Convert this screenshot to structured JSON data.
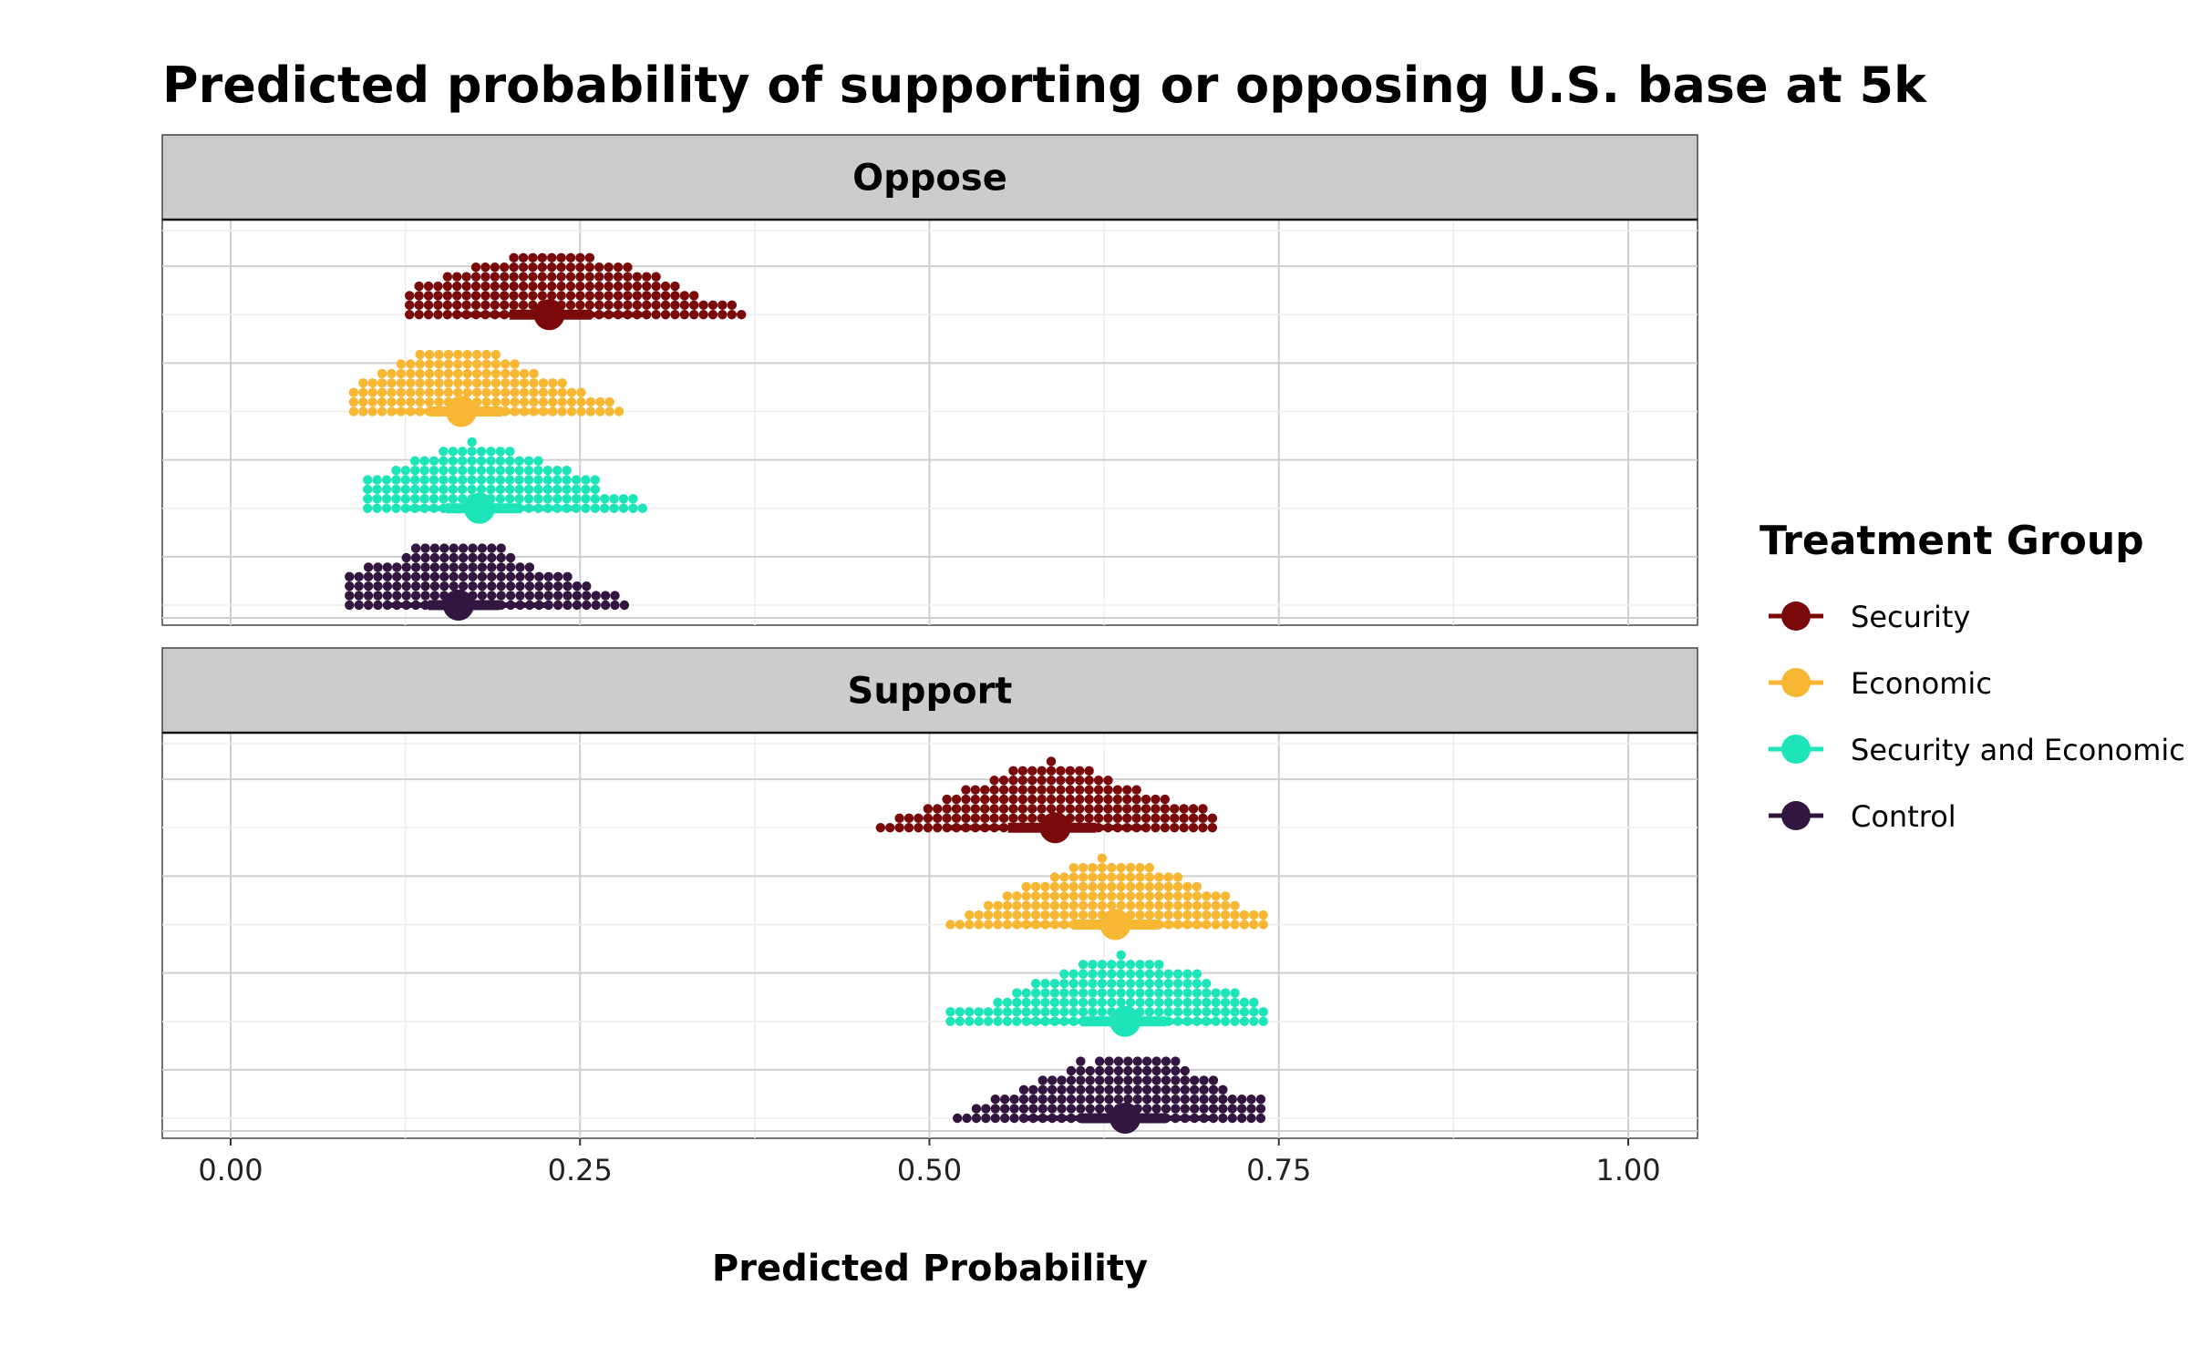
{
  "chart_data": {
    "type": "scatter",
    "subtype": "dot-interval (quantile dotplot with median and interval)",
    "title": "Predicted probability of supporting or opposing U.S. base at 5k",
    "xlabel": "Predicted Probability",
    "ylabel": "",
    "xlim": [
      -0.05,
      1.05
    ],
    "x_ticks": [
      0.0,
      0.25,
      0.5,
      0.75,
      1.0
    ],
    "x_tick_labels": [
      "0.00",
      "0.25",
      "0.50",
      "0.75",
      "1.00"
    ],
    "grid": true,
    "legend": {
      "title": "Treatment Group",
      "position": "right",
      "entries": [
        "Security",
        "Economic",
        "Security and Economic",
        "Control"
      ]
    },
    "colors": {
      "Security": "#7a0a0a",
      "Economic": "#f7b733",
      "Security and Economic": "#1de5b9",
      "Control": "#33163f"
    },
    "facets": [
      {
        "label": "Oppose",
        "series": [
          {
            "name": "Security",
            "median": 0.228,
            "interval": [
              0.165,
              0.295
            ],
            "min": 0.128,
            "max": 0.368
          },
          {
            "name": "Economic",
            "median": 0.165,
            "interval": [
              0.115,
              0.23
            ],
            "min": 0.088,
            "max": 0.278
          },
          {
            "name": "Security and Economic",
            "median": 0.178,
            "interval": [
              0.125,
              0.245
            ],
            "min": 0.098,
            "max": 0.298
          },
          {
            "name": "Control",
            "median": 0.163,
            "interval": [
              0.115,
              0.228
            ],
            "min": 0.085,
            "max": 0.282
          }
        ]
      },
      {
        "label": "Support",
        "series": [
          {
            "name": "Security",
            "median": 0.59,
            "interval": [
              0.515,
              0.655
            ],
            "min": 0.465,
            "max": 0.7
          },
          {
            "name": "Economic",
            "median": 0.633,
            "interval": [
              0.565,
              0.7
            ],
            "min": 0.515,
            "max": 0.74
          },
          {
            "name": "Security and Economic",
            "median": 0.64,
            "interval": [
              0.57,
              0.705
            ],
            "min": 0.515,
            "max": 0.74
          },
          {
            "name": "Control",
            "median": 0.64,
            "interval": [
              0.57,
              0.705
            ],
            "min": 0.52,
            "max": 0.738
          }
        ]
      }
    ]
  }
}
